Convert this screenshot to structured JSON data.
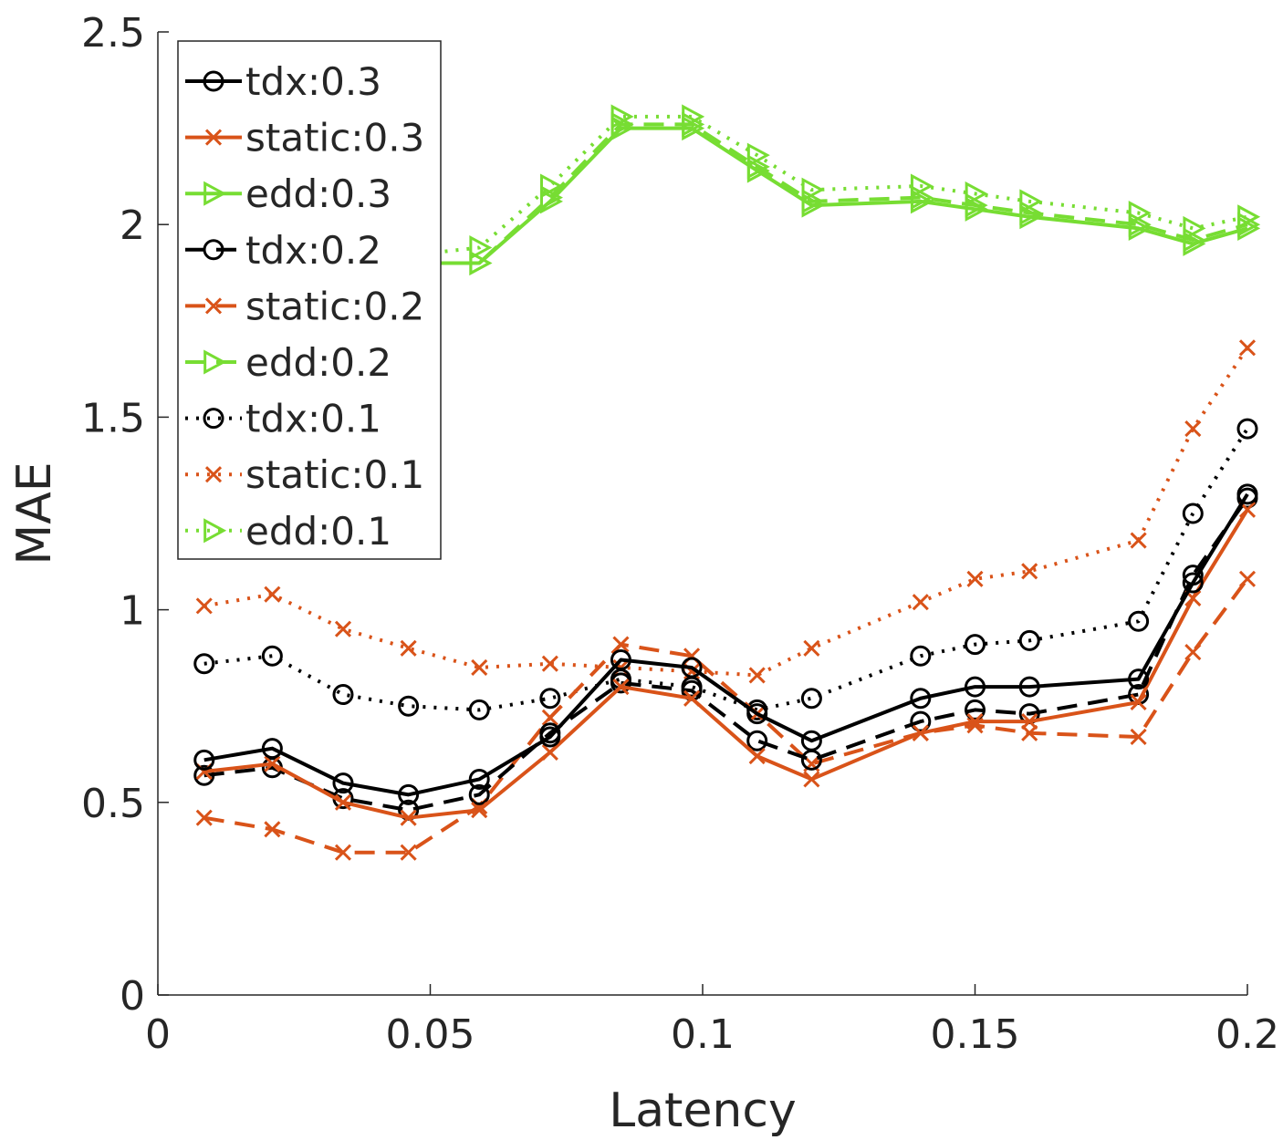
{
  "chart_data": {
    "type": "line",
    "xlabel": "Latency",
    "ylabel": "MAE",
    "xlim": [
      0,
      0.2
    ],
    "ylim": [
      0,
      2.5
    ],
    "xticks": [
      "0",
      "0.05",
      "0.1",
      "0.15",
      "0.2"
    ],
    "yticks": [
      "0",
      "0.5",
      "1",
      "1.5",
      "2",
      "2.5"
    ],
    "grid": false,
    "legend_position": "top-left",
    "x": [
      0.0085,
      0.021,
      0.034,
      0.046,
      0.059,
      0.072,
      0.085,
      0.098,
      0.11,
      0.12,
      0.14,
      0.15,
      0.16,
      0.18,
      0.19,
      0.2
    ],
    "series": [
      {
        "name": "tdx:0.3",
        "color": "#000000",
        "dash": "solid",
        "marker": "circle",
        "values": [
          0.61,
          0.64,
          0.55,
          0.52,
          0.56,
          0.67,
          0.87,
          0.85,
          0.73,
          0.66,
          0.77,
          0.8,
          0.8,
          0.82,
          1.07,
          1.3
        ]
      },
      {
        "name": "static:0.3",
        "color": "#D95319",
        "dash": "solid",
        "marker": "x",
        "values": [
          0.58,
          0.6,
          0.5,
          0.46,
          0.48,
          0.63,
          0.8,
          0.77,
          0.62,
          0.56,
          0.68,
          0.71,
          0.71,
          0.76,
          1.03,
          1.26
        ]
      },
      {
        "name": "edd:0.3",
        "color": "#77DD33",
        "dash": "solid",
        "marker": "triangle",
        "values": [
          1.91,
          1.91,
          1.91,
          1.9,
          1.9,
          2.06,
          2.25,
          2.25,
          2.14,
          2.05,
          2.06,
          2.04,
          2.02,
          1.99,
          1.95,
          1.99
        ]
      },
      {
        "name": "tdx:0.2",
        "color": "#000000",
        "dash": "dashed",
        "marker": "circle",
        "values": [
          0.57,
          0.59,
          0.51,
          0.48,
          0.52,
          0.68,
          0.81,
          0.79,
          0.66,
          0.61,
          0.71,
          0.74,
          0.73,
          0.78,
          1.09,
          1.29
        ]
      },
      {
        "name": "static:0.2",
        "color": "#D95319",
        "dash": "dashed",
        "marker": "x",
        "values": [
          0.46,
          0.43,
          0.37,
          0.37,
          0.49,
          0.72,
          0.91,
          0.88,
          0.73,
          0.6,
          0.68,
          0.7,
          0.68,
          0.67,
          0.89,
          1.08
        ]
      },
      {
        "name": "edd:0.2",
        "color": "#77DD33",
        "dash": "dashed",
        "marker": "triangle",
        "values": [
          1.91,
          1.91,
          1.91,
          1.9,
          1.9,
          2.07,
          2.26,
          2.26,
          2.15,
          2.06,
          2.07,
          2.05,
          2.03,
          2.0,
          1.96,
          2.0
        ]
      },
      {
        "name": "tdx:0.1",
        "color": "#000000",
        "dash": "dotted",
        "marker": "circle",
        "values": [
          0.86,
          0.88,
          0.78,
          0.75,
          0.74,
          0.77,
          0.82,
          0.8,
          0.74,
          0.77,
          0.88,
          0.91,
          0.92,
          0.97,
          1.25,
          1.47
        ]
      },
      {
        "name": "static:0.1",
        "color": "#D95319",
        "dash": "dotted",
        "marker": "x",
        "values": [
          1.01,
          1.04,
          0.95,
          0.9,
          0.85,
          0.86,
          0.85,
          0.84,
          0.83,
          0.9,
          1.02,
          1.08,
          1.1,
          1.18,
          1.47,
          1.68
        ]
      },
      {
        "name": "edd:0.1",
        "color": "#77DD33",
        "dash": "dotted",
        "marker": "triangle",
        "values": [
          1.92,
          1.92,
          1.92,
          1.92,
          1.94,
          2.1,
          2.28,
          2.28,
          2.18,
          2.09,
          2.1,
          2.08,
          2.06,
          2.03,
          1.99,
          2.02
        ]
      }
    ]
  }
}
